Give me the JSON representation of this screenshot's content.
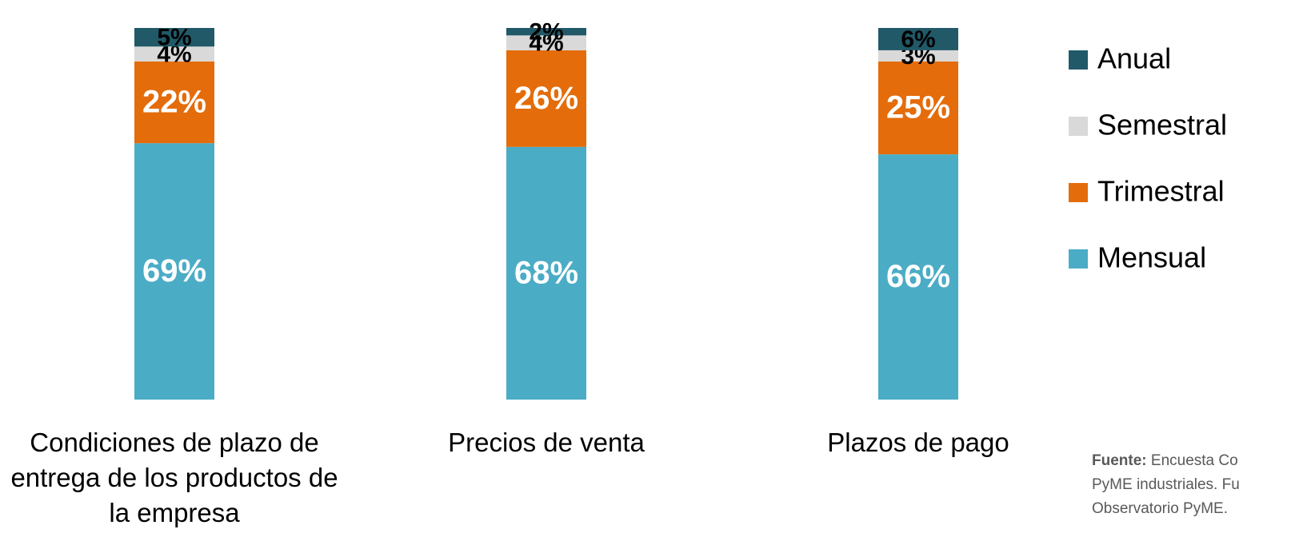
{
  "chart_data": {
    "type": "stacked_bar",
    "categories": [
      "Condiciones de plazo de entrega de los productos de la empresa",
      "Precios de venta",
      "Plazos de pago"
    ],
    "series": [
      {
        "name": "Mensual",
        "color": "#4bacc6",
        "label_color": "#ffffff",
        "values": [
          69,
          68,
          66
        ],
        "value_labels": [
          "69%",
          "68%",
          "66%"
        ]
      },
      {
        "name": "Trimestral",
        "color": "#e46c0a",
        "label_color": "#ffffff",
        "values": [
          22,
          26,
          25
        ],
        "value_labels": [
          "22%",
          "26%",
          "25%"
        ]
      },
      {
        "name": "Semestral",
        "color": "#d9d9d9",
        "label_color": "#000000",
        "values": [
          4,
          4,
          3
        ],
        "value_labels": [
          "4%",
          "4%",
          "3%"
        ]
      },
      {
        "name": "Anual",
        "color": "#215968",
        "label_color": "#000000",
        "values": [
          5,
          2,
          6
        ],
        "value_labels": [
          "5%",
          "2%",
          "6%"
        ]
      }
    ],
    "ylim": [
      0,
      100
    ],
    "legend": "right",
    "source_label": "Fuente:",
    "source_lines": [
      "Encuesta Co",
      "PyME industriales. Fu",
      "Observatorio PyME."
    ]
  }
}
